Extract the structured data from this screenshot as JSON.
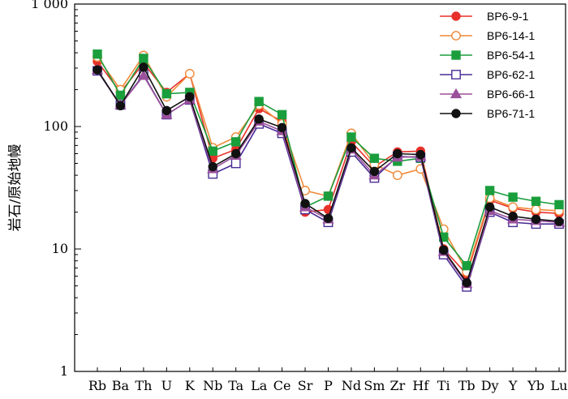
{
  "chart_data": {
    "type": "line",
    "title": "",
    "xlabel": "",
    "ylabel": "岩石/原始地幔",
    "yscale": "log",
    "ylim": [
      1,
      1000
    ],
    "yticks": [
      {
        "value": 1,
        "label": "1"
      },
      {
        "value": 10,
        "label": "10"
      },
      {
        "value": 100,
        "label": "100"
      },
      {
        "value": 1000,
        "label": "1 000"
      }
    ],
    "categories": [
      "Rb",
      "Ba",
      "Th",
      "U",
      "K",
      "Nb",
      "Ta",
      "La",
      "Ce",
      "Sr",
      "P",
      "Nd",
      "Sm",
      "Zr",
      "Hf",
      "Ti",
      "Tb",
      "Dy",
      "Y",
      "Yb",
      "Lu"
    ],
    "legend_position": "top-right",
    "series": [
      {
        "name": "BP6-9-1",
        "color": "#e8312a",
        "marker": "circle-filled",
        "values": [
          340,
          190,
          330,
          190,
          270,
          55,
          65,
          140,
          110,
          20,
          21,
          75,
          47,
          62,
          63,
          10,
          6.2,
          25,
          21.5,
          20,
          19.5
        ]
      },
      {
        "name": "BP6-14-1",
        "color": "#f08a3a",
        "marker": "circle-open",
        "values": [
          370,
          200,
          380,
          175,
          270,
          67,
          82,
          150,
          105,
          30,
          27,
          88,
          49,
          40,
          45,
          14.5,
          6.5,
          26,
          22,
          21,
          20.5
        ]
      },
      {
        "name": "BP6-54-1",
        "color": "#1a9e3c",
        "marker": "square-filled",
        "values": [
          390,
          180,
          360,
          185,
          190,
          63,
          75,
          160,
          125,
          22,
          27,
          82,
          55,
          52,
          55,
          12.5,
          7.3,
          30,
          26.5,
          24.5,
          23
        ]
      },
      {
        "name": "BP6-62-1",
        "color": "#4a2d96",
        "marker": "square-open",
        "values": [
          285,
          150,
          265,
          125,
          165,
          41,
          50,
          105,
          88,
          21,
          16.5,
          62,
          38,
          57,
          56,
          9,
          4.9,
          20,
          16.5,
          16,
          16
        ]
      },
      {
        "name": "BP6-66-1",
        "color": "#9a509a",
        "marker": "triangle-filled",
        "values": [
          290,
          150,
          260,
          125,
          165,
          45,
          58,
          110,
          92,
          22,
          17.5,
          65,
          40,
          56,
          57,
          9.5,
          5.2,
          20.5,
          17.5,
          17,
          16.5
        ]
      },
      {
        "name": "BP6-71-1",
        "color": "#111111",
        "marker": "circle-filled",
        "values": [
          290,
          148,
          305,
          135,
          175,
          47,
          60,
          115,
          98,
          23.5,
          17.8,
          67,
          43,
          60,
          59,
          9.8,
          5.3,
          22,
          18.5,
          17.5,
          16.8
        ]
      }
    ]
  }
}
